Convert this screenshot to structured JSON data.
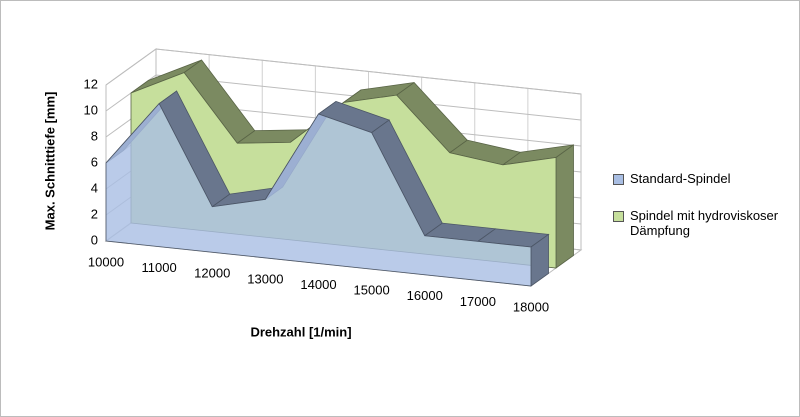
{
  "chart_data": {
    "type": "area3d",
    "y_label": "Max. Schnitttiefe [mm]",
    "x_label": "Drehzahl [1/min]",
    "categories": [
      "10000",
      "11000",
      "12000",
      "13000",
      "14000",
      "15000",
      "16000",
      "17000",
      "18000"
    ],
    "series": [
      {
        "name": "Standard-Spindel",
        "color": "#a9bee3",
        "values": [
          6,
          11,
          3.5,
          4.5,
          11.5,
          10.5,
          3,
          3,
          3
        ]
      },
      {
        "name": "Spindel mit hydroviskoser Dämpfung",
        "color": "#c6df9c",
        "values": [
          10,
          12,
          7,
          7.5,
          11,
          12,
          8,
          7.5,
          8.5
        ]
      }
    ],
    "ylim": [
      0,
      12
    ],
    "yticks": [
      0,
      2,
      4,
      6,
      8,
      10,
      12
    ],
    "grid": true
  }
}
